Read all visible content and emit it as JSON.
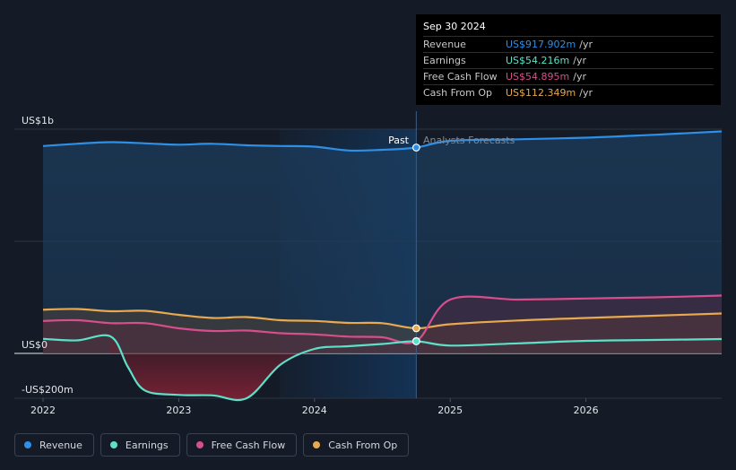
{
  "chart_data": {
    "type": "line",
    "title": "",
    "y_tick_labels": [
      "US$1b",
      "US$0",
      "-US$200m"
    ],
    "ylim": [
      -200,
      1000
    ],
    "x_tick_labels": [
      "2022",
      "2023",
      "2024",
      "2025",
      "2026"
    ],
    "xlim": [
      2022.0,
      2027.0
    ],
    "divider_date": 2024.75,
    "past_label": "Past",
    "forecast_label": "Analysts Forecasts",
    "series": [
      {
        "name": "Revenue",
        "color": "#2d8fe6",
        "points": [
          [
            2022.0,
            925
          ],
          [
            2022.25,
            935
          ],
          [
            2022.5,
            942
          ],
          [
            2022.75,
            937
          ],
          [
            2023.0,
            931
          ],
          [
            2023.25,
            935
          ],
          [
            2023.5,
            928
          ],
          [
            2023.75,
            925
          ],
          [
            2024.0,
            922
          ],
          [
            2024.25,
            905
          ],
          [
            2024.5,
            908
          ],
          [
            2024.75,
            918
          ],
          [
            2025.0,
            948
          ],
          [
            2025.5,
            955
          ],
          [
            2026.0,
            962
          ],
          [
            2026.5,
            975
          ],
          [
            2027.0,
            990
          ]
        ]
      },
      {
        "name": "Earnings",
        "color": "#5ce0c8",
        "points": [
          [
            2022.0,
            65
          ],
          [
            2022.25,
            58
          ],
          [
            2022.5,
            75
          ],
          [
            2022.625,
            -60
          ],
          [
            2022.75,
            -165
          ],
          [
            2023.0,
            -185
          ],
          [
            2023.25,
            -187
          ],
          [
            2023.5,
            -200
          ],
          [
            2023.75,
            -50
          ],
          [
            2024.0,
            20
          ],
          [
            2024.25,
            32
          ],
          [
            2024.5,
            42
          ],
          [
            2024.75,
            54
          ],
          [
            2025.0,
            35
          ],
          [
            2025.5,
            45
          ],
          [
            2026.0,
            56
          ],
          [
            2026.5,
            60
          ],
          [
            2027.0,
            64
          ]
        ]
      },
      {
        "name": "Free Cash Flow",
        "color": "#d64f8c",
        "points": [
          [
            2022.0,
            145
          ],
          [
            2022.25,
            148
          ],
          [
            2022.5,
            135
          ],
          [
            2022.75,
            135
          ],
          [
            2023.0,
            112
          ],
          [
            2023.25,
            100
          ],
          [
            2023.5,
            102
          ],
          [
            2023.75,
            90
          ],
          [
            2024.0,
            85
          ],
          [
            2024.25,
            75
          ],
          [
            2024.5,
            72
          ],
          [
            2024.75,
            55
          ],
          [
            2025.0,
            240
          ],
          [
            2025.5,
            240
          ],
          [
            2026.0,
            245
          ],
          [
            2026.5,
            250
          ],
          [
            2027.0,
            258
          ]
        ]
      },
      {
        "name": "Cash From Op",
        "color": "#e8a94f",
        "points": [
          [
            2022.0,
            195
          ],
          [
            2022.25,
            198
          ],
          [
            2022.5,
            188
          ],
          [
            2022.75,
            190
          ],
          [
            2023.0,
            172
          ],
          [
            2023.25,
            158
          ],
          [
            2023.5,
            162
          ],
          [
            2023.75,
            148
          ],
          [
            2024.0,
            145
          ],
          [
            2024.25,
            136
          ],
          [
            2024.5,
            135
          ],
          [
            2024.75,
            112
          ],
          [
            2025.0,
            130
          ],
          [
            2025.5,
            147
          ],
          [
            2026.0,
            158
          ],
          [
            2026.5,
            168
          ],
          [
            2027.0,
            178
          ]
        ]
      }
    ]
  },
  "tooltip": {
    "date": "Sep 30 2024",
    "unit": "/yr",
    "rows": [
      {
        "label": "Revenue",
        "value": "US$917.902m",
        "color": "#2d8fe6"
      },
      {
        "label": "Earnings",
        "value": "US$54.216m",
        "color": "#5ce0c8"
      },
      {
        "label": "Free Cash Flow",
        "value": "US$54.895m",
        "color": "#d64f8c"
      },
      {
        "label": "Cash From Op",
        "value": "US$112.349m",
        "color": "#e8a94f"
      }
    ]
  },
  "legend": [
    {
      "label": "Revenue",
      "color": "#2d8fe6"
    },
    {
      "label": "Earnings",
      "color": "#5ce0c8"
    },
    {
      "label": "Free Cash Flow",
      "color": "#d64f8c"
    },
    {
      "label": "Cash From Op",
      "color": "#e8a94f"
    }
  ]
}
